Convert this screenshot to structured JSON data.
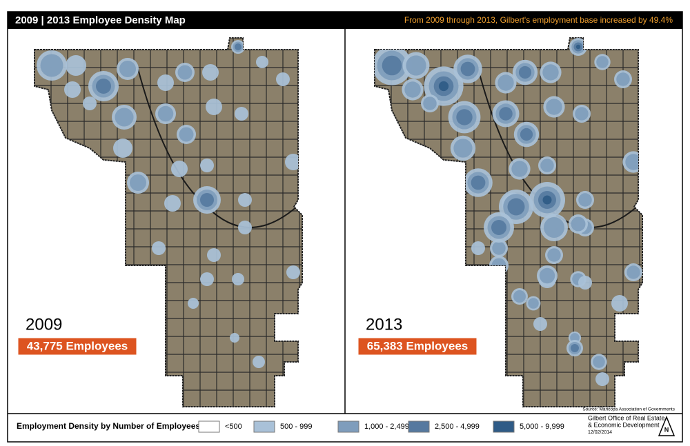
{
  "header": {
    "title": "2009 | 2013 Employee Density Map",
    "subtitle": "From 2009 through 2013, Gilbert's employment base increased by 49.4%"
  },
  "maps": [
    {
      "year": "2009",
      "employees": "43,775 Employees"
    },
    {
      "year": "2013",
      "employees": "65,383 Employees"
    }
  ],
  "source": "Source: Maricopa Association of Governments",
  "legend": {
    "title": "Employment Density by Number of Employees:",
    "items": [
      {
        "label": "<500",
        "color": "#ffffff"
      },
      {
        "label": "500 - 999",
        "color": "#a9c1d8"
      },
      {
        "label": "1,000 - 2,499",
        "color": "#7f9dbc"
      },
      {
        "label": "2,500 - 4,999",
        "color": "#56799f"
      },
      {
        "label": "5,000 - 9,999",
        "color": "#2f5b86"
      }
    ]
  },
  "footer": {
    "org_line1": "Gilbert Office of Real Estate",
    "org_line2": "& Economic Development",
    "date": "12/02/2014"
  }
}
